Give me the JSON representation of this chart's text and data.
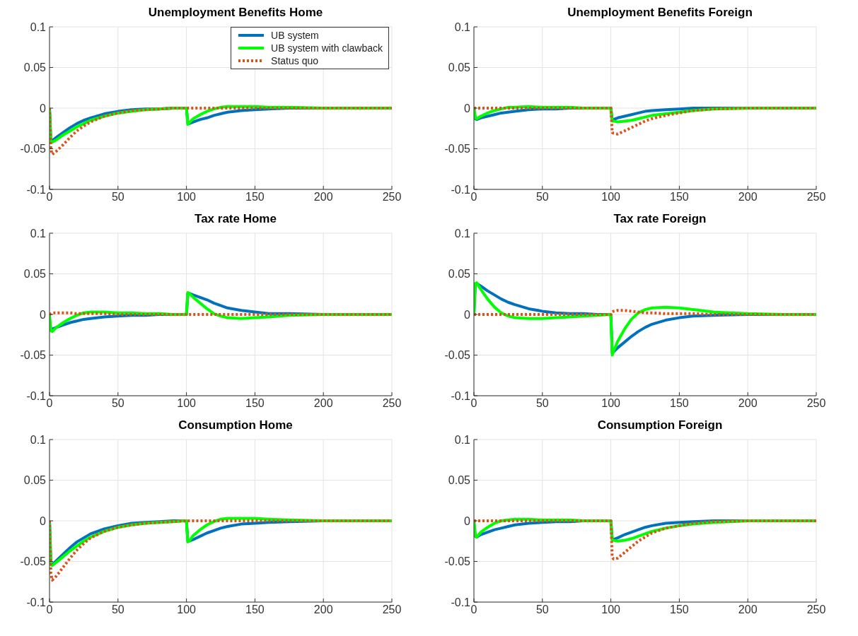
{
  "chart_data": [
    {
      "type": "line",
      "title": "Unemployment Benefits Home",
      "x": [
        0,
        1,
        2,
        5,
        10,
        15,
        20,
        25,
        30,
        40,
        50,
        60,
        70,
        80,
        90,
        99,
        100,
        101,
        102,
        105,
        110,
        115,
        120,
        125,
        130,
        140,
        150,
        160,
        175,
        200,
        225,
        250
      ],
      "xlim": [
        0,
        250
      ],
      "xticks": [
        0,
        50,
        100,
        150,
        200,
        250
      ],
      "ylim": [
        -0.1,
        0.1
      ],
      "yticks": [
        -0.1,
        -0.05,
        0,
        0.05,
        0.1
      ],
      "grid": true,
      "marker": "none",
      "legend": "top right",
      "series": [
        {
          "name": "UB system",
          "color": "#0072bd",
          "line_style": "solid",
          "values": [
            0,
            -0.04,
            -0.04,
            -0.036,
            -0.03,
            -0.024,
            -0.019,
            -0.015,
            -0.012,
            -0.007,
            -0.004,
            -0.002,
            -0.001,
            -0.001,
            0,
            0,
            0,
            -0.019,
            -0.019,
            -0.017,
            -0.014,
            -0.012,
            -0.009,
            -0.007,
            -0.005,
            -0.003,
            -0.002,
            -0.001,
            0,
            0,
            null,
            null
          ]
        },
        {
          "name": "UB system with clawback",
          "color": "#00ff00",
          "line_style": "solid",
          "values": [
            0,
            -0.042,
            -0.042,
            -0.039,
            -0.033,
            -0.028,
            -0.023,
            -0.019,
            -0.015,
            -0.01,
            -0.006,
            -0.004,
            -0.002,
            -0.001,
            0,
            0,
            0,
            -0.02,
            -0.018,
            -0.013,
            -0.008,
            -0.004,
            -0.001,
            0.001,
            0.002,
            0.002,
            0.002,
            0.001,
            0.001,
            0,
            0,
            0
          ]
        },
        {
          "name": "Status quo",
          "color": "#d95319",
          "line_style": "dotted",
          "values": [
            0,
            -0.05,
            -0.057,
            -0.053,
            -0.045,
            -0.036,
            -0.028,
            -0.022,
            -0.017,
            -0.01,
            -0.006,
            -0.003,
            -0.002,
            -0.001,
            0,
            0,
            0,
            0,
            0,
            0,
            0,
            0,
            0,
            0,
            0,
            0,
            0,
            0,
            0,
            0,
            0,
            0
          ]
        }
      ]
    },
    {
      "type": "line",
      "title": "Unemployment Benefits Foreign",
      "x": [
        0,
        1,
        2,
        5,
        10,
        15,
        20,
        25,
        30,
        40,
        50,
        60,
        70,
        80,
        90,
        99,
        100,
        101,
        102,
        105,
        110,
        115,
        120,
        125,
        130,
        140,
        150,
        160,
        175,
        200,
        225,
        250
      ],
      "xlim": [
        0,
        250
      ],
      "xticks": [
        0,
        50,
        100,
        150,
        200,
        250
      ],
      "ylim": [
        -0.1,
        0.1
      ],
      "yticks": [
        -0.1,
        -0.05,
        0,
        0.05,
        0.1
      ],
      "grid": true,
      "marker": "none",
      "series": [
        {
          "color": "#0072bd",
          "line_style": "solid",
          "values": [
            0,
            -0.013,
            -0.014,
            -0.012,
            -0.01,
            -0.008,
            -0.006,
            -0.005,
            -0.004,
            -0.002,
            -0.001,
            -0.001,
            0,
            0,
            0,
            0,
            0,
            -0.015,
            -0.014,
            -0.012,
            -0.01,
            -0.008,
            -0.006,
            -0.004,
            -0.003,
            -0.002,
            -0.001,
            0,
            0,
            0,
            null,
            null
          ]
        },
        {
          "color": "#00ff00",
          "line_style": "solid",
          "values": [
            0,
            -0.012,
            -0.013,
            -0.01,
            -0.006,
            -0.003,
            -0.001,
            0.001,
            0.001,
            0.002,
            0.001,
            0.001,
            0.001,
            0,
            0,
            0,
            0,
            -0.016,
            -0.016,
            -0.017,
            -0.016,
            -0.015,
            -0.013,
            -0.011,
            -0.009,
            -0.007,
            -0.005,
            -0.003,
            -0.001,
            0,
            0,
            0
          ]
        },
        {
          "color": "#d95319",
          "line_style": "dotted",
          "values": [
            0,
            0,
            0,
            0,
            0,
            0,
            0,
            0,
            0,
            0,
            0,
            0,
            0,
            0,
            0,
            0,
            0,
            -0.03,
            -0.031,
            -0.032,
            -0.028,
            -0.024,
            -0.02,
            -0.016,
            -0.013,
            -0.009,
            -0.006,
            -0.003,
            -0.001,
            0,
            0,
            0
          ]
        }
      ]
    },
    {
      "type": "line",
      "title": "Tax rate Home",
      "x": [
        0,
        1,
        2,
        5,
        10,
        15,
        20,
        25,
        30,
        40,
        50,
        60,
        70,
        80,
        90,
        99,
        100,
        101,
        102,
        105,
        110,
        115,
        120,
        125,
        130,
        140,
        150,
        160,
        175,
        200,
        225,
        250
      ],
      "xlim": [
        0,
        250
      ],
      "xticks": [
        0,
        50,
        100,
        150,
        200,
        250
      ],
      "ylim": [
        -0.1,
        0.1
      ],
      "yticks": [
        -0.1,
        -0.05,
        0,
        0.05,
        0.1
      ],
      "grid": true,
      "marker": "none",
      "series": [
        {
          "color": "#0072bd",
          "line_style": "solid",
          "values": [
            null,
            -0.018,
            -0.018,
            -0.016,
            -0.013,
            -0.01,
            -0.008,
            -0.006,
            -0.005,
            -0.003,
            -0.002,
            -0.001,
            -0.001,
            0,
            0,
            0,
            0,
            0.026,
            0.026,
            0.024,
            0.021,
            0.018,
            0.014,
            0.011,
            0.008,
            0.005,
            0.003,
            0.001,
            0.001,
            0,
            null,
            null
          ]
        },
        {
          "color": "#00ff00",
          "line_style": "solid",
          "values": [
            0,
            -0.02,
            -0.021,
            -0.016,
            -0.01,
            -0.005,
            -0.001,
            0.002,
            0.003,
            0.003,
            0.002,
            0.002,
            0.001,
            0.001,
            0,
            0,
            0,
            0.027,
            0.026,
            0.021,
            0.014,
            0.007,
            0.001,
            -0.002,
            -0.004,
            -0.005,
            -0.004,
            -0.003,
            -0.001,
            0,
            0,
            0
          ]
        },
        {
          "color": "#d95319",
          "line_style": "dotted",
          "values": [
            0,
            0.001,
            0.002,
            0.002,
            0.002,
            0.002,
            0.001,
            0.001,
            0.001,
            0.001,
            0,
            0,
            0,
            0,
            0,
            0,
            0,
            0,
            0,
            0,
            0,
            0,
            0,
            0,
            0,
            0,
            0,
            0,
            0,
            0,
            0,
            0
          ]
        }
      ]
    },
    {
      "type": "line",
      "title": "Tax rate Foreign",
      "x": [
        0,
        1,
        2,
        5,
        10,
        15,
        20,
        25,
        30,
        40,
        50,
        60,
        70,
        80,
        90,
        99,
        100,
        101,
        102,
        105,
        110,
        115,
        120,
        125,
        130,
        140,
        150,
        160,
        175,
        200,
        225,
        250
      ],
      "xlim": [
        0,
        250
      ],
      "xticks": [
        0,
        50,
        100,
        150,
        200,
        250
      ],
      "ylim": [
        -0.1,
        0.1
      ],
      "yticks": [
        -0.1,
        -0.05,
        0,
        0.05,
        0.1
      ],
      "grid": true,
      "marker": "none",
      "series": [
        {
          "color": "#0072bd",
          "line_style": "solid",
          "values": [
            0,
            0.037,
            0.038,
            0.035,
            0.029,
            0.024,
            0.019,
            0.015,
            0.012,
            0.007,
            0.004,
            0.002,
            0.001,
            0.001,
            0,
            0,
            0,
            -0.047,
            -0.046,
            -0.041,
            -0.034,
            -0.027,
            -0.021,
            -0.016,
            -0.012,
            -0.007,
            -0.004,
            -0.002,
            -0.001,
            0,
            0,
            0
          ]
        },
        {
          "color": "#00ff00",
          "line_style": "solid",
          "values": [
            0,
            0.038,
            0.039,
            0.031,
            0.019,
            0.009,
            0.002,
            -0.002,
            -0.004,
            -0.005,
            -0.005,
            -0.004,
            -0.003,
            -0.002,
            -0.001,
            0,
            0,
            -0.05,
            -0.045,
            -0.033,
            -0.018,
            -0.006,
            0.002,
            0.006,
            0.008,
            0.009,
            0.008,
            0.006,
            0.003,
            0.001,
            0,
            0
          ]
        },
        {
          "color": "#d95319",
          "line_style": "dotted",
          "values": [
            0,
            0,
            0,
            0,
            0,
            0,
            0,
            0,
            0,
            0,
            0,
            0,
            0,
            0,
            0,
            0,
            0,
            0.003,
            0.004,
            0.005,
            0.005,
            0.004,
            0.003,
            0.002,
            0.002,
            0.001,
            0.001,
            0.001,
            0,
            0,
            0,
            0
          ]
        }
      ]
    },
    {
      "type": "line",
      "title": "Consumption Home",
      "x": [
        0,
        1,
        2,
        5,
        10,
        15,
        20,
        25,
        30,
        40,
        50,
        60,
        70,
        80,
        90,
        99,
        100,
        101,
        102,
        105,
        110,
        115,
        120,
        125,
        130,
        140,
        150,
        160,
        175,
        200,
        225,
        250
      ],
      "xlim": [
        0,
        250
      ],
      "xticks": [
        0,
        50,
        100,
        150,
        200,
        250
      ],
      "ylim": [
        -0.1,
        0.1
      ],
      "yticks": [
        -0.1,
        -0.05,
        0,
        0.05,
        0.1
      ],
      "grid": true,
      "marker": "none",
      "series": [
        {
          "color": "#0072bd",
          "line_style": "solid",
          "values": [
            0,
            -0.053,
            -0.054,
            -0.049,
            -0.041,
            -0.033,
            -0.026,
            -0.021,
            -0.016,
            -0.01,
            -0.006,
            -0.003,
            -0.002,
            -0.001,
            0,
            0,
            0,
            -0.025,
            -0.025,
            -0.023,
            -0.019,
            -0.015,
            -0.012,
            -0.009,
            -0.007,
            -0.004,
            -0.003,
            -0.002,
            -0.001,
            0,
            0,
            0
          ]
        },
        {
          "color": "#00ff00",
          "line_style": "solid",
          "values": [
            0,
            -0.054,
            -0.055,
            -0.051,
            -0.044,
            -0.037,
            -0.031,
            -0.025,
            -0.02,
            -0.013,
            -0.008,
            -0.005,
            -0.003,
            -0.002,
            -0.001,
            0,
            0,
            -0.026,
            -0.025,
            -0.018,
            -0.011,
            -0.005,
            -0.001,
            0.002,
            0.003,
            0.003,
            0.003,
            0.002,
            0.001,
            0,
            0,
            0
          ]
        },
        {
          "color": "#d95319",
          "line_style": "dotted",
          "values": [
            0,
            -0.065,
            -0.073,
            -0.068,
            -0.057,
            -0.046,
            -0.036,
            -0.028,
            -0.021,
            -0.013,
            -0.008,
            -0.005,
            -0.003,
            -0.002,
            -0.001,
            0,
            0,
            0,
            0,
            0,
            0,
            0,
            0,
            0,
            0,
            0,
            0,
            0,
            0,
            0,
            0,
            0
          ]
        }
      ]
    },
    {
      "type": "line",
      "title": "Consumption Foreign",
      "x": [
        0,
        1,
        2,
        5,
        10,
        15,
        20,
        25,
        30,
        40,
        50,
        60,
        70,
        80,
        90,
        99,
        100,
        101,
        102,
        105,
        110,
        115,
        120,
        125,
        130,
        140,
        150,
        160,
        175,
        200,
        225,
        250
      ],
      "xlim": [
        0,
        250
      ],
      "xticks": [
        0,
        50,
        100,
        150,
        200,
        250
      ],
      "ylim": [
        -0.1,
        0.1
      ],
      "yticks": [
        -0.1,
        -0.05,
        0,
        0.05,
        0.1
      ],
      "grid": true,
      "marker": "none",
      "series": [
        {
          "color": "#0072bd",
          "line_style": "solid",
          "values": [
            0,
            -0.019,
            -0.02,
            -0.017,
            -0.014,
            -0.011,
            -0.009,
            -0.007,
            -0.005,
            -0.003,
            -0.002,
            -0.001,
            -0.001,
            0,
            0,
            0,
            0,
            -0.023,
            -0.023,
            -0.021,
            -0.017,
            -0.014,
            -0.011,
            -0.008,
            -0.006,
            -0.003,
            -0.002,
            -0.001,
            0,
            0,
            0,
            0
          ]
        },
        {
          "color": "#00ff00",
          "line_style": "solid",
          "values": [
            0,
            -0.018,
            -0.02,
            -0.014,
            -0.008,
            -0.003,
            0,
            0.001,
            0.002,
            0.002,
            0.001,
            0.001,
            0.001,
            0,
            0,
            0,
            0,
            -0.023,
            -0.024,
            -0.025,
            -0.024,
            -0.022,
            -0.019,
            -0.016,
            -0.013,
            -0.009,
            -0.006,
            -0.004,
            -0.002,
            0,
            0,
            0
          ]
        },
        {
          "color": "#d95319",
          "line_style": "dotted",
          "values": [
            0,
            0,
            0,
            0,
            0,
            0,
            0,
            0,
            0,
            0,
            0,
            0,
            0,
            0,
            0,
            0,
            0,
            -0.045,
            -0.047,
            -0.046,
            -0.039,
            -0.032,
            -0.025,
            -0.02,
            -0.015,
            -0.009,
            -0.006,
            -0.003,
            -0.001,
            0,
            0,
            0
          ]
        }
      ]
    }
  ]
}
